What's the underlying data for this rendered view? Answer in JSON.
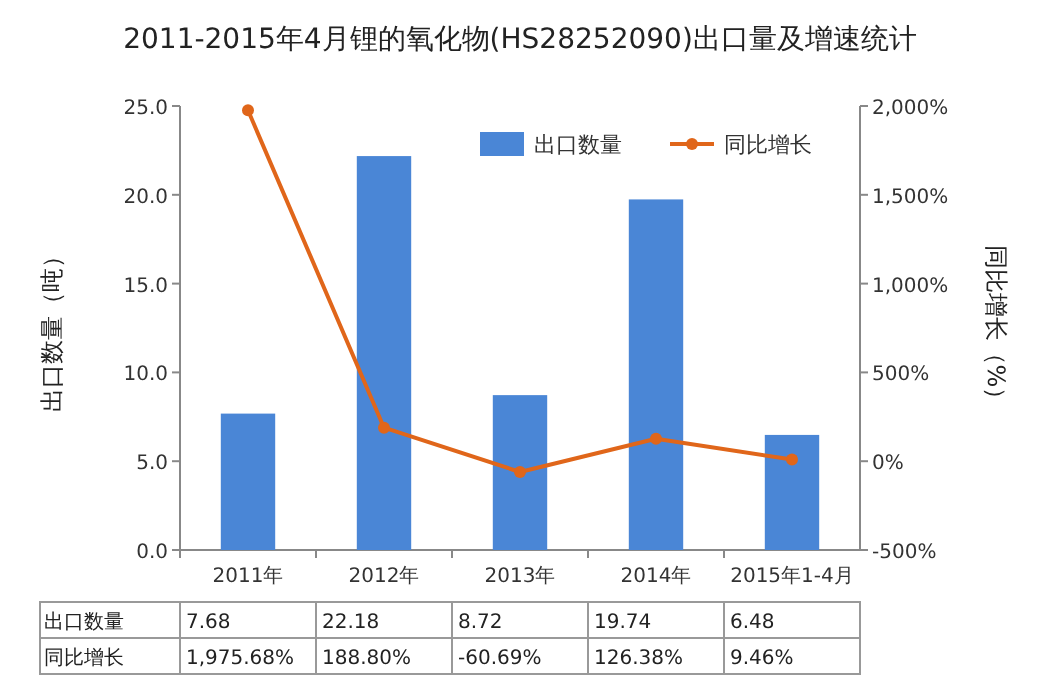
{
  "chart_data": {
    "type": "bar",
    "title": "2011-2015年4月锂的氧化物(HS28252090)出口量及增速统计",
    "ylabel": "出口数量（吨）",
    "y2label": "同比增长（%）",
    "categories": [
      "2011年",
      "2012年",
      "2013年",
      "2014年",
      "2015年1-4月"
    ],
    "series": [
      {
        "name": "出口数量",
        "color": "#4a86d6",
        "values": [
          7.68,
          22.18,
          8.72,
          19.74,
          6.48
        ],
        "value_labels": [
          "7.68",
          "22.18",
          "8.72",
          "19.74",
          "6.48"
        ]
      },
      {
        "name": "同比增长",
        "type": "line",
        "axis": "y2",
        "color": "#e0661a",
        "marker": "circle",
        "values": [
          1975.68,
          188.8,
          -60.69,
          126.38,
          9.46
        ],
        "value_labels": [
          "1,975.68%",
          "188.80%",
          "-60.69%",
          "126.38%",
          "9.46%"
        ]
      }
    ],
    "ylim": [
      0,
      25
    ],
    "yticks": [
      {
        "value": 0,
        "label": "0.0"
      },
      {
        "value": 5,
        "label": "5.0"
      },
      {
        "value": 10,
        "label": "10.0"
      },
      {
        "value": 15,
        "label": "15.0"
      },
      {
        "value": 20,
        "label": "20.0"
      },
      {
        "value": 25,
        "label": "25.0"
      }
    ],
    "y2lim": [
      -500,
      2000
    ],
    "y2ticks": [
      {
        "value": -500,
        "label": "-500%"
      },
      {
        "value": 0,
        "label": "0%"
      },
      {
        "value": 500,
        "label": "500%"
      },
      {
        "value": 1000,
        "label": "1,000%"
      },
      {
        "value": 1500,
        "label": "1,500%"
      },
      {
        "value": 2000,
        "label": "2,000%"
      }
    ],
    "legend": "top right"
  }
}
